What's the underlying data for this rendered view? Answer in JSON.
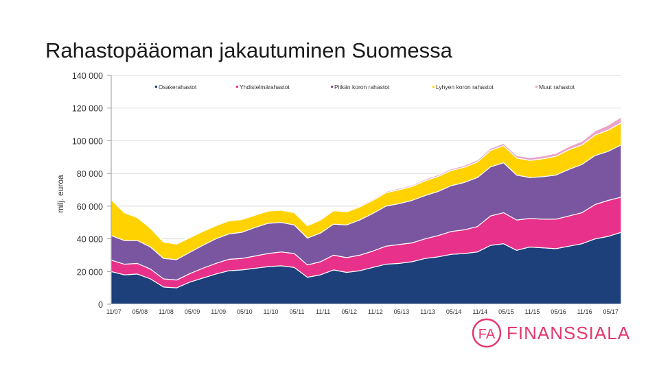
{
  "title": "Rahastopääoman jakautuminen Suomessa",
  "logo": {
    "text": "FINANSSIALA",
    "mark": "FA"
  },
  "chart_data": {
    "type": "area",
    "stacked": true,
    "title": "Rahastopääoman jakautuminen Suomessa",
    "ylabel": "milj. euroa",
    "xlabel": "",
    "ylim": [
      0,
      140000
    ],
    "yticks": [
      0,
      20000,
      40000,
      60000,
      80000,
      100000,
      120000,
      140000
    ],
    "ytick_labels": [
      "0",
      "20 000",
      "40 000",
      "60 000",
      "80 000",
      "100 000",
      "120 000",
      "140 000"
    ],
    "x_tick_labels": [
      "11/07",
      "05/08",
      "11/08",
      "05/09",
      "11/09",
      "05/10",
      "11/10",
      "05/11",
      "11/11",
      "05/12",
      "11/12",
      "05/13",
      "11/13",
      "05/14",
      "11/14",
      "05/15",
      "11/15",
      "05/16",
      "11/16",
      "05/17"
    ],
    "legend_position": "top",
    "x": [
      "11/07",
      "02/08",
      "05/08",
      "08/08",
      "11/08",
      "02/09",
      "05/09",
      "08/09",
      "11/09",
      "02/10",
      "05/10",
      "08/10",
      "11/10",
      "02/11",
      "05/11",
      "08/11",
      "11/11",
      "02/12",
      "05/12",
      "08/12",
      "11/12",
      "02/13",
      "05/13",
      "08/13",
      "11/13",
      "02/14",
      "05/14",
      "08/14",
      "11/14",
      "02/15",
      "05/15",
      "08/15",
      "11/15",
      "02/16",
      "05/16",
      "08/16",
      "11/16",
      "02/17",
      "05/17",
      "08/17"
    ],
    "series": [
      {
        "name": "Osakerahastot",
        "color": "#1d3f7a",
        "values": [
          20000,
          18000,
          18500,
          15500,
          10500,
          10000,
          13500,
          16000,
          18500,
          20500,
          21000,
          22000,
          23000,
          23500,
          22500,
          16500,
          18000,
          21000,
          19500,
          20500,
          22500,
          24500,
          25000,
          26000,
          28000,
          29000,
          30500,
          31000,
          32000,
          36000,
          37000,
          33000,
          35000,
          34500,
          34000,
          35500,
          37000,
          40000,
          41500,
          44000
        ]
      },
      {
        "name": "Yhdistelmärahastot",
        "color": "#e8318a",
        "values": [
          7000,
          6500,
          6500,
          6000,
          5000,
          4800,
          5200,
          6000,
          6500,
          7000,
          7000,
          7500,
          8000,
          8500,
          8500,
          7500,
          8000,
          9000,
          9000,
          9500,
          10000,
          11000,
          11500,
          11500,
          12000,
          13000,
          14000,
          14500,
          15500,
          18000,
          19000,
          18500,
          17500,
          17500,
          18000,
          18500,
          19000,
          21000,
          22000,
          21500
        ]
      },
      {
        "name": "Pitkän koron rahastot",
        "color": "#7a55a0",
        "values": [
          15000,
          14500,
          14000,
          13500,
          12500,
          12500,
          13000,
          14000,
          15000,
          15500,
          16000,
          17500,
          18500,
          18000,
          17500,
          16500,
          17500,
          19000,
          20000,
          21500,
          23000,
          24500,
          25000,
          26000,
          26500,
          27000,
          28000,
          29000,
          30000,
          30000,
          30500,
          27500,
          25000,
          26000,
          27000,
          28500,
          29500,
          30000,
          30000,
          32000
        ]
      },
      {
        "name": "Lyhyen koron rahastot",
        "color": "#ffd200",
        "values": [
          22000,
          17000,
          14000,
          11500,
          10000,
          9500,
          9000,
          8500,
          8000,
          8000,
          7800,
          7500,
          7500,
          7500,
          7500,
          7500,
          8000,
          8200,
          8000,
          8000,
          8000,
          8200,
          8500,
          8500,
          9000,
          9200,
          9300,
          9300,
          9500,
          10000,
          10500,
          10500,
          10500,
          11000,
          11500,
          12000,
          12000,
          12500,
          13000,
          13500
        ]
      },
      {
        "name": "Muut rahastot",
        "color": "#e8a4cc",
        "values": [
          500,
          500,
          500,
          500,
          500,
          500,
          500,
          500,
          500,
          500,
          500,
          500,
          500,
          500,
          500,
          500,
          600,
          600,
          600,
          600,
          700,
          700,
          800,
          800,
          900,
          1000,
          1000,
          1100,
          1200,
          1300,
          1400,
          1500,
          1600,
          1700,
          1800,
          2000,
          2200,
          2500,
          3000,
          3500
        ]
      }
    ]
  }
}
